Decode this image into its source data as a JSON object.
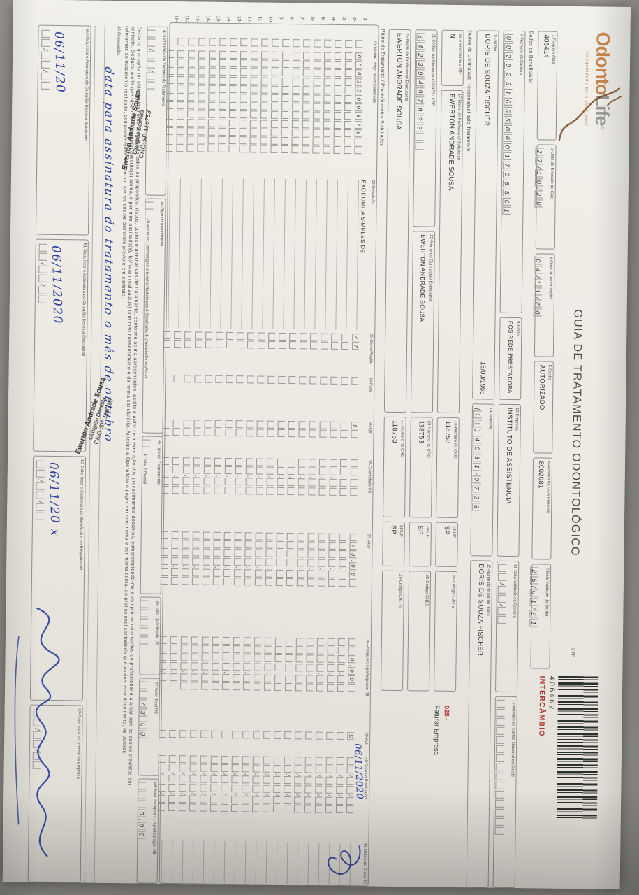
{
  "header": {
    "logo_part1": "Odonto",
    "logo_part2": "Life",
    "logo_reg": "®",
    "logo_tagline": "tranquilidade para você sorrir",
    "title": "GUIA DE TRATAMENTO ODONTOLÓGICO",
    "form_no_label": "2-Nº",
    "guide_number": "406462",
    "intercambio": "INTERCÂMBIO",
    "colors": {
      "red": "#b0362e",
      "logo_orange": "#c9854c",
      "ink_blue": "#2d3f9f"
    }
  },
  "sections": {
    "beneficiario": "Dados do Beneficiário",
    "contratado": "Dados do Contratado Responsável pelo Tratamento",
    "plano": "Plano de Tratamento / Procedimentos Solicitados"
  },
  "fields": {
    "f1": {
      "label": "1-Registro ANS",
      "value": "406414"
    },
    "f3": {
      "label": "3-Data de Emissão da Guia",
      "boxes": "27/10/20"
    },
    "f4": {
      "label": "4-Data de Autorização",
      "boxes": "04/11/20"
    },
    "f5": {
      "label": "5-Senha",
      "value": "AUTORIZADO"
    },
    "f6": {
      "label": "6-Número da Guia Principal",
      "value": "8002081"
    },
    "f7": {
      "label": "7-Data Validade da Senha",
      "boxes": "25/01/21"
    },
    "f8": {
      "label": "8-Número da Carteira",
      "boxes": "00202510550601706501"
    },
    "f9": {
      "label": "9-Plano",
      "value": "POS REDE PRESTADORA"
    },
    "f10": {
      "label": "10-Empresa",
      "value": "INSTITUTO DE ASSISTENCIA"
    },
    "f11": {
      "label": "11-Data Validade da Carteira",
      "boxes": "__/__/__"
    },
    "f12": {
      "label": "12-Número do Cartão Nacional da Saúde",
      "boxes": "_______________"
    },
    "f13": {
      "label": "13-Nome",
      "value": "DORIS DE SOUZA FISCHER",
      "birthdate": "15/09/1965"
    },
    "f14": {
      "label": "14-Telefone",
      "boxes": "(11) 4031-0725"
    },
    "f15": {
      "label": "15-Nome do titular do plano",
      "value": "DORIS DE SOUZA FISCHER"
    },
    "f16": {
      "label": "16-Atendimento a RN",
      "value": "N"
    },
    "f17": {
      "label": "17-Nome do Profissional Solicitante",
      "value": "EWERTON ANDRADE SOUSA"
    },
    "f18": {
      "label": "18-Número no CRO",
      "value": "118753"
    },
    "f19": {
      "label": "19-UF",
      "value": "SP"
    },
    "f20": {
      "label": "20-Código CBO S",
      "value": ""
    },
    "f21": {
      "label": "21-Código na Operadora / CNPJ / CPF",
      "boxes": "34239497833__"
    },
    "f22": {
      "label": "22-Nome do Contratado Executante",
      "value": "EWERTON ANDRADE SOUSA"
    },
    "f23": {
      "label": "23-Número no CRO",
      "value": "118753"
    },
    "f24": {
      "label": "24-UF",
      "value": "SP"
    },
    "f25": {
      "label": "25-Código CNES",
      "value": ""
    },
    "f26": {
      "label": "26-Nome do Profissional Executante",
      "value": "EWERTON ANDRADE SOUSA"
    },
    "f27": {
      "label": "27-Número no CRO",
      "value": "118753"
    },
    "f28": {
      "label": "28-UF",
      "value": "SP"
    },
    "f29": {
      "label": "29-Código CBO S",
      "value": ""
    },
    "f43": {
      "label": "43-Data Prevista Término do Tratamento",
      "boxes": "__/__/__"
    },
    "f44": {
      "label": "44-Tipo de Atendimento",
      "boxes": "_",
      "options": "1-Tratamento Odontológico  2-Exame Radiológico  3-Ortodontia  4-Urgência/Emergência"
    },
    "f45": {
      "label": "45-Tipo de Faturamento",
      "boxes": "_",
      "options": "1-Total  2-Parcial"
    },
    "f46": {
      "label": "46-Total Quantidade US",
      "boxes": "_____"
    },
    "f47": {
      "label": "47-Valor Total R$",
      "boxes": "__73,00"
    },
    "f48": {
      "label": "48-Total Franquia / Co-participação R$",
      "boxes": "___0,00"
    },
    "f49": {
      "label": "49-Observação",
      "handwriting": "data para assinatura do tratamento o mês de outubro"
    },
    "f50": {
      "label": "50-Data, local e Assinatura do Cirurgião-Dentista Solicitante",
      "handwritten": "06/11/20",
      "boxes": "__/__/__"
    },
    "f51": {
      "label": "51-Data, local e Assinatura do Cirurgião-Dentista Executante",
      "handwritten": "06/11/2020",
      "boxes": "__/__/__"
    },
    "f52": {
      "label": "52-Data, local e Assinatura do Beneficiário ou Responsável",
      "handwritten": "06/11/20 x",
      "boxes": "__/__/__"
    },
    "f53": {
      "label": "53-Data, local e Carimbo da Empresa",
      "boxes": "__/__/__"
    }
  },
  "faturar": {
    "code": "025 -",
    "label": "Faturar Empresa"
  },
  "table": {
    "columns": [
      {
        "key": "tabela",
        "label": "30-Tabela"
      },
      {
        "key": "codigo",
        "label": "31-Código do Procedimento"
      },
      {
        "key": "descricao",
        "label": "32-Descrição"
      },
      {
        "key": "dente",
        "label": "33-Dente/Região"
      },
      {
        "key": "face",
        "label": "34-Face"
      },
      {
        "key": "qtd",
        "label": "35-Qtd"
      },
      {
        "key": "us",
        "label": "36-Quantidade US"
      },
      {
        "key": "valor",
        "label": "37-Valor"
      },
      {
        "key": "franquia",
        "label": "38-Franquia/Co-participação R$"
      },
      {
        "key": "aut",
        "label": "39-Aut"
      },
      {
        "key": "data",
        "label": "40-Data da Realização"
      },
      {
        "key": "motivo",
        "label": "41-Motivo da Glosa  42-"
      }
    ],
    "row1": {
      "num": "1-",
      "tabela": "_",
      "codigo": "0082000875__",
      "descricao": "EXODONTIA SIMPLES DE",
      "dente": "47",
      "face": "_",
      "qtd": "1_",
      "us": "__,__",
      "valor": "_73,00_",
      "franquia": "__0,00_",
      "aut": "S",
      "data": "__/__/__",
      "handwritten": "06/11/2020"
    },
    "empty_row": {
      "tabela": "_",
      "codigo": "____________",
      "descricao": "",
      "dente": "__",
      "face": "_",
      "qtd": "__",
      "us": "__,__",
      "valor": "____,__",
      "franquia": "____,__",
      "aut": "_",
      "data": "__/__/__",
      "motivo": ""
    },
    "row_numbers": [
      "2-",
      "3-",
      "4-",
      "5-",
      "6-",
      "7-",
      "8-",
      "9-",
      "10-",
      "11-",
      "12-",
      "13-",
      "14-",
      "15-",
      "16-",
      "17-",
      "18-",
      "19-"
    ]
  },
  "declaration": [
    "Declaro, que após ter sido devidamente esclarecido sobre os propósitos, riscos, custos e alternativas de tratamento, conforme acima apresentados, aceito e autorizo a execução dos procedimentos descritos, comprometendo-me a cumprir as orientações do profissional e a arcar com os custos previstos em",
    "contrato. Declaro, ainda que o(s) procedimento(s) descrito(s) acima, e por mim assinado(s), foi/foram realizado(s) com meu consentimento e de forma satisfatória. Autorizo a Operadora a pagar em meu nome e por minha conta, ao profissional contratado que assina esse documento, os valores",
    "referentes ao tratamento realizado, comprometendo-me a arcar com os custos conforme previsto em contrato."
  ],
  "stamp": {
    "line1": "Ewerton Andrade Sousa",
    "line2": "Cirurgião Dentista",
    "line3": "CRO-SP 118753"
  }
}
